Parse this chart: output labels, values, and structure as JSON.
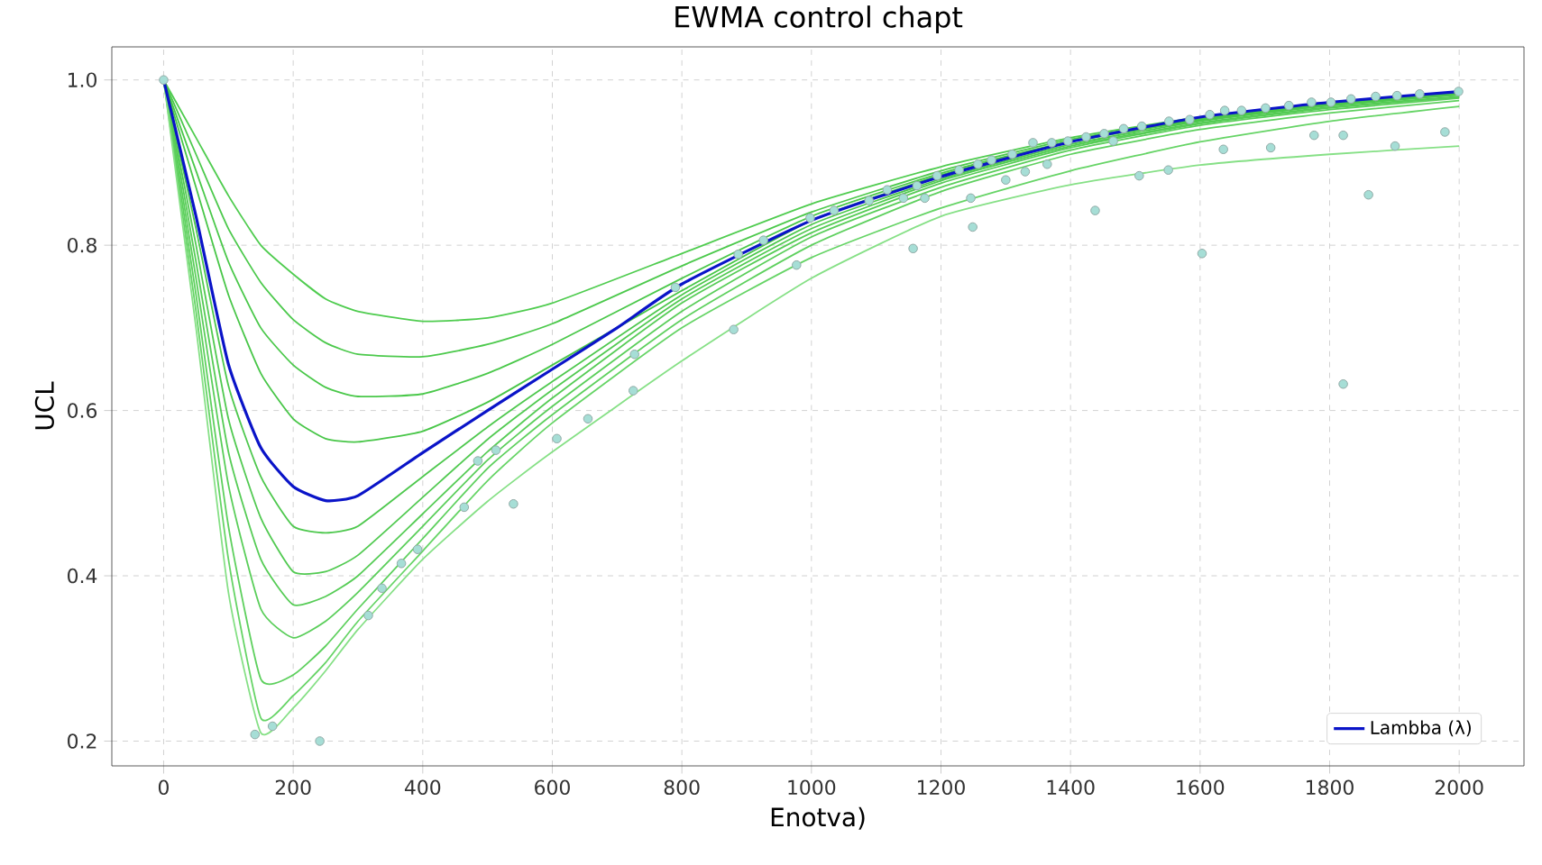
{
  "chart_data": {
    "type": "line",
    "title": "EWMA control chapt",
    "xlabel": "Enotva)",
    "ylabel": "UCL",
    "x": [
      0,
      50,
      100,
      150,
      200,
      250,
      300,
      400,
      500,
      600,
      800,
      1000,
      1200,
      1400,
      1600,
      1800,
      2000
    ],
    "series": [
      {
        "color": "#4fcc4f",
        "values": [
          1.0,
          0.93,
          0.86,
          0.8,
          0.765,
          0.735,
          0.72,
          0.708,
          0.712,
          0.73,
          0.79,
          0.85,
          0.895,
          0.93,
          0.955,
          0.972,
          0.985
        ]
      },
      {
        "color": "#4cc94c",
        "values": [
          1.0,
          0.91,
          0.82,
          0.755,
          0.71,
          0.682,
          0.668,
          0.665,
          0.68,
          0.705,
          0.775,
          0.84,
          0.89,
          0.928,
          0.953,
          0.971,
          0.984
        ]
      },
      {
        "color": "#4ac84a",
        "values": [
          1.0,
          0.89,
          0.78,
          0.7,
          0.655,
          0.628,
          0.617,
          0.62,
          0.645,
          0.68,
          0.76,
          0.835,
          0.887,
          0.926,
          0.952,
          0.97,
          0.983
        ]
      },
      {
        "color": "#48c648",
        "values": [
          1.0,
          0.87,
          0.74,
          0.645,
          0.59,
          0.566,
          0.562,
          0.575,
          0.61,
          0.655,
          0.745,
          0.83,
          0.885,
          0.925,
          0.951,
          0.969,
          0.982
        ]
      },
      {
        "color": "#4ec84e",
        "values": [
          1.0,
          0.82,
          0.63,
          0.52,
          0.46,
          0.452,
          0.46,
          0.52,
          0.58,
          0.635,
          0.74,
          0.825,
          0.88,
          0.922,
          0.95,
          0.969,
          0.982
        ]
      },
      {
        "color": "#52ca52",
        "values": [
          1.0,
          0.8,
          0.59,
          0.47,
          0.405,
          0.405,
          0.425,
          0.495,
          0.565,
          0.625,
          0.735,
          0.82,
          0.878,
          0.92,
          0.948,
          0.967,
          0.98
        ]
      },
      {
        "color": "#56cc56",
        "values": [
          1.0,
          0.78,
          0.55,
          0.42,
          0.365,
          0.375,
          0.4,
          0.475,
          0.55,
          0.615,
          0.73,
          0.815,
          0.875,
          0.918,
          0.947,
          0.966,
          0.979
        ]
      },
      {
        "color": "#5ace5a",
        "values": [
          1.0,
          0.76,
          0.51,
          0.36,
          0.325,
          0.345,
          0.38,
          0.46,
          0.54,
          0.605,
          0.72,
          0.81,
          0.87,
          0.915,
          0.945,
          0.964,
          0.978
        ]
      },
      {
        "color": "#5ed05e",
        "values": [
          1.0,
          0.74,
          0.46,
          0.275,
          0.28,
          0.315,
          0.36,
          0.445,
          0.53,
          0.595,
          0.71,
          0.8,
          0.865,
          0.91,
          0.94,
          0.96,
          0.975
        ]
      },
      {
        "color": "#66d466",
        "values": [
          1.0,
          0.72,
          0.42,
          0.228,
          0.255,
          0.295,
          0.345,
          0.43,
          0.515,
          0.585,
          0.7,
          0.785,
          0.845,
          0.89,
          0.925,
          0.95,
          0.968
        ]
      },
      {
        "color": "#86e086",
        "values": [
          1.0,
          0.7,
          0.38,
          0.21,
          0.24,
          0.285,
          0.335,
          0.42,
          0.49,
          0.55,
          0.66,
          0.76,
          0.835,
          0.873,
          0.897,
          0.91,
          0.92
        ]
      },
      {
        "name": "Lambba (λ)",
        "color": "#0a14c8",
        "x": [
          0,
          50,
          100,
          150,
          200,
          250,
          300,
          400,
          500,
          600,
          700,
          800,
          1000,
          1200,
          1400,
          1600,
          1800,
          2000
        ],
        "values": [
          1.0,
          0.835,
          0.656,
          0.555,
          0.508,
          0.491,
          0.497,
          0.549,
          0.6,
          0.65,
          0.7,
          0.753,
          0.83,
          0.883,
          0.925,
          0.955,
          0.973,
          0.986
        ]
      },
      {
        "type": "scatter",
        "marker": "circle",
        "color": "#a6ded6",
        "x": [
          0,
          141,
          168,
          241,
          316,
          337,
          367,
          392,
          464,
          485,
          513,
          540,
          607,
          655,
          725,
          727,
          790,
          880,
          887,
          926,
          977,
          998,
          1035,
          1089,
          1117,
          1142,
          1157,
          1163,
          1175,
          1194,
          1228,
          1246,
          1249,
          1257,
          1278,
          1300,
          1310,
          1330,
          1342,
          1364,
          1371,
          1396,
          1424,
          1438,
          1452,
          1466,
          1482,
          1506,
          1510,
          1551,
          1552,
          1584,
          1603,
          1615,
          1636,
          1638,
          1664,
          1701,
          1709,
          1737,
          1772,
          1776,
          1802,
          1821,
          1821,
          1833,
          1860,
          1871,
          1901,
          1904,
          1939,
          1978,
          1999
        ],
        "values": [
          1.0,
          0.208,
          0.218,
          0.2,
          0.352,
          0.385,
          0.415,
          0.432,
          0.483,
          0.539,
          0.552,
          0.487,
          0.566,
          0.59,
          0.624,
          0.668,
          0.749,
          0.698,
          0.789,
          0.806,
          0.776,
          0.833,
          0.842,
          0.854,
          0.867,
          0.857,
          0.796,
          0.872,
          0.857,
          0.884,
          0.891,
          0.857,
          0.822,
          0.898,
          0.903,
          0.879,
          0.91,
          0.889,
          0.924,
          0.898,
          0.924,
          0.926,
          0.931,
          0.842,
          0.935,
          0.926,
          0.941,
          0.884,
          0.944,
          0.891,
          0.95,
          0.952,
          0.79,
          0.958,
          0.916,
          0.963,
          0.963,
          0.966,
          0.918,
          0.969,
          0.973,
          0.933,
          0.973,
          0.933,
          0.632,
          0.977,
          0.861,
          0.98,
          0.92,
          0.981,
          0.983,
          0.937,
          0.986
        ]
      }
    ],
    "xlim": [
      -80,
      2100
    ],
    "ylim": [
      0.17,
      1.04
    ],
    "xticks": [
      0,
      200,
      400,
      600,
      800,
      1000,
      1200,
      1400,
      1600,
      1800,
      2000
    ],
    "yticks": [
      0.2,
      0.4,
      0.6,
      0.8,
      {
        "value": 1.0,
        "label": "1.0"
      }
    ],
    "grid": true,
    "legend": "bottom right"
  }
}
